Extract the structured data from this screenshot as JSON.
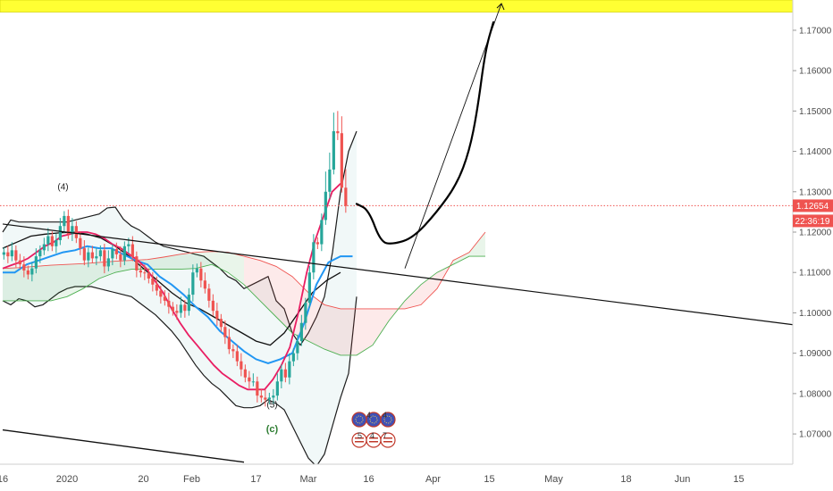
{
  "chart_data": {
    "type": "candlestick",
    "instrument_hint": "EUR/USD",
    "ylim": [
      1.0625,
      1.1775
    ],
    "grid": false,
    "y_ticks": [
      "1.17000",
      "1.16000",
      "1.15000",
      "1.14000",
      "1.13000",
      "1.12000",
      "1.11000",
      "1.10000",
      "1.09000",
      "1.08000",
      "1.07000"
    ],
    "x_ticks": [
      {
        "label": "16",
        "day": 0
      },
      {
        "label": "2020",
        "day": 16
      },
      {
        "label": "20",
        "day": 35
      },
      {
        "label": "Feb",
        "day": 47
      },
      {
        "label": "17",
        "day": 63
      },
      {
        "label": "Mar",
        "day": 76
      },
      {
        "label": "16",
        "day": 91
      },
      {
        "label": "Apr",
        "day": 107
      },
      {
        "label": "15",
        "day": 121
      },
      {
        "label": "May",
        "day": 137
      },
      {
        "label": "18",
        "day": 155
      },
      {
        "label": "Jun",
        "day": 169
      },
      {
        "label": "15",
        "day": 183
      }
    ],
    "x_range": [
      0,
      197
    ],
    "current_price": {
      "label": "1.12654",
      "value": 1.12654,
      "color": "#ef5350"
    },
    "countdown": {
      "label": "22:36:19"
    },
    "resistance_zone": {
      "from": 1.1745,
      "to": 1.18,
      "color": "#ffff33"
    },
    "wave_labels": [
      {
        "text": "(4)",
        "day": 15,
        "price": 1.1305
      },
      {
        "text": "(5)",
        "day": 67,
        "price": 1.0765
      },
      {
        "text": "(c)",
        "day": 67,
        "price": 1.0705
      }
    ],
    "closes": [
      1.115,
      1.114,
      1.1155,
      1.113,
      1.112,
      1.1105,
      1.1095,
      1.111,
      1.114,
      1.1155,
      1.117,
      1.119,
      1.1165,
      1.118,
      1.1215,
      1.124,
      1.1195,
      1.1215,
      1.1185,
      1.116,
      1.113,
      1.115,
      1.1135,
      1.114,
      1.1155,
      1.1115,
      1.1135,
      1.1158,
      1.1145,
      1.113,
      1.1165,
      1.117,
      1.114,
      1.1105,
      1.11,
      1.1098,
      1.1085,
      1.107,
      1.1055,
      1.104,
      1.103,
      1.1015,
      1.1005,
      1.1,
      1.102,
      1.1005,
      1.1045,
      1.11,
      1.111,
      1.108,
      1.106,
      1.103,
      1.1005,
      1.0985,
      1.0965,
      1.094,
      1.091,
      1.0905,
      1.088,
      1.086,
      1.084,
      1.083,
      1.083,
      1.0795,
      1.079,
      1.0785,
      1.079,
      1.0795,
      1.083,
      1.086,
      1.084,
      1.088,
      1.09,
      1.093,
      1.0975,
      1.1025,
      1.11,
      1.1175,
      1.117,
      1.123,
      1.13,
      1.1355,
      1.145,
      1.1445,
      1.131,
      1.1265
    ]
  },
  "indicators": {
    "bb_upper": [
      1.12,
      1.123,
      1.1225,
      1.1225,
      1.1225,
      1.1225,
      1.1225,
      1.1225,
      1.1225,
      1.123,
      1.1235,
      1.124,
      1.1245,
      1.126,
      1.1262,
      1.1232,
      1.1215,
      1.1205,
      1.119,
      1.1175,
      1.1165,
      1.116,
      1.1155,
      1.115,
      1.1145,
      1.114,
      1.1125,
      1.111,
      1.109,
      1.108,
      1.106,
      1.107,
      1.108,
      1.109,
      1.103,
      1.101,
      1.095,
      1.092,
      1.095,
      1.099,
      1.104,
      1.115,
      1.13,
      1.14,
      1.145
    ],
    "bb_lower": [
      1.103,
      1.102,
      1.1035,
      1.103,
      1.1015,
      1.102,
      1.1035,
      1.105,
      1.106,
      1.1065,
      1.1065,
      1.1065,
      1.106,
      1.1055,
      1.105,
      1.1045,
      1.104,
      1.1025,
      1.101,
      1.0995,
      1.0975,
      1.0955,
      1.093,
      1.09,
      1.087,
      1.0845,
      1.0825,
      1.081,
      1.079,
      1.077,
      1.0765,
      1.0765,
      1.077,
      1.0785,
      1.0775,
      1.076,
      1.072,
      1.068,
      1.064,
      1.062,
      1.065,
      1.072,
      1.079,
      1.085,
      1.104
    ],
    "red_ma": [
      1.111,
      1.1118,
      1.1125,
      1.1135,
      1.115,
      1.1165,
      1.1175,
      1.119,
      1.1195,
      1.12,
      1.12,
      1.1195,
      1.1185,
      1.117,
      1.116,
      1.1145,
      1.113,
      1.111,
      1.108,
      1.105,
      1.101,
      1.0975,
      1.0945,
      1.092,
      1.0895,
      1.087,
      1.085,
      1.0835,
      1.082,
      1.081,
      1.081,
      1.081,
      1.0835,
      1.087,
      1.0915,
      1.1,
      1.11,
      1.118,
      1.124,
      1.13,
      1.132
    ],
    "blue_kijun": [
      1.11,
      1.11,
      1.112,
      1.113,
      1.114,
      1.115,
      1.1155,
      1.1165,
      1.116,
      1.116,
      1.1145,
      1.113,
      1.112,
      1.109,
      1.107,
      1.1045,
      1.1015,
      1.099,
      1.0955,
      1.093,
      1.0905,
      1.0885,
      1.0875,
      1.0885,
      1.09,
      1.0975,
      1.107,
      1.1125,
      1.114,
      1.114
    ],
    "black_ma": [
      1.116,
      1.1175,
      1.119,
      1.1195,
      1.1198,
      1.12,
      1.1195,
      1.1185,
      1.1165,
      1.114,
      1.111,
      1.108,
      1.105,
      1.1025,
      1.101,
      1.099,
      1.097,
      1.095,
      1.093,
      1.092,
      1.095,
      1.1,
      1.105,
      1.108,
      1.11
    ],
    "cloud_top": [
      1.111,
      1.1112,
      1.1115,
      1.1118,
      1.112,
      1.1122,
      1.1125,
      1.1128,
      1.113,
      1.1132,
      1.1138,
      1.1145,
      1.115,
      1.1152,
      1.115,
      1.114,
      1.113,
      1.1115,
      1.109,
      1.105,
      1.102,
      1.101,
      1.101,
      1.101,
      1.101,
      1.101,
      1.102,
      1.106,
      1.113,
      1.115,
      1.12
    ],
    "cloud_bottom": [
      1.103,
      1.103,
      1.103,
      1.103,
      1.104,
      1.106,
      1.1085,
      1.11,
      1.1108,
      1.1108,
      1.1108,
      1.1108,
      1.111,
      1.112,
      1.11,
      1.107,
      1.103,
      1.099,
      1.095,
      1.093,
      1.091,
      1.0895,
      1.0895,
      1.092,
      1.098,
      1.103,
      1.107,
      1.11,
      1.112,
      1.114,
      1.114
    ]
  },
  "drawings": {
    "trendline_mid": {
      "from": {
        "day": 0,
        "price": 1.122
      },
      "to": {
        "day": 197,
        "price": 1.097
      }
    },
    "trendline_low": {
      "from": {
        "day": 0,
        "price": 1.071
      },
      "to": {
        "day": 60,
        "price": 1.063
      }
    },
    "arrow_projection": {
      "from": {
        "day": 100,
        "price": 1.111
      },
      "to": {
        "day": 124,
        "price": 1.18
      }
    },
    "projected_path": [
      {
        "day": 88,
        "price": 1.127
      },
      {
        "day": 91,
        "price": 1.1255
      },
      {
        "day": 94,
        "price": 1.1175
      },
      {
        "day": 97,
        "price": 1.117
      },
      {
        "day": 102,
        "price": 1.1185
      },
      {
        "day": 108,
        "price": 1.125
      },
      {
        "day": 113,
        "price": 1.132
      },
      {
        "day": 116,
        "price": 1.14
      },
      {
        "day": 118,
        "price": 1.15
      },
      {
        "day": 120,
        "price": 1.165
      },
      {
        "day": 122,
        "price": 1.172
      }
    ]
  },
  "events": {
    "row1": [
      "4",
      "4"
    ],
    "row2": [
      "5",
      "4",
      "7"
    ]
  },
  "colors": {
    "up": "#26a69a",
    "down": "#ef5350",
    "band": "#1c1c1c",
    "kijun": "#2196f3",
    "ma_red": "#e91e63",
    "cloud_green": "#4caf50",
    "cloud_red": "#ef5350",
    "fill_bb": "#e8f4f4"
  }
}
